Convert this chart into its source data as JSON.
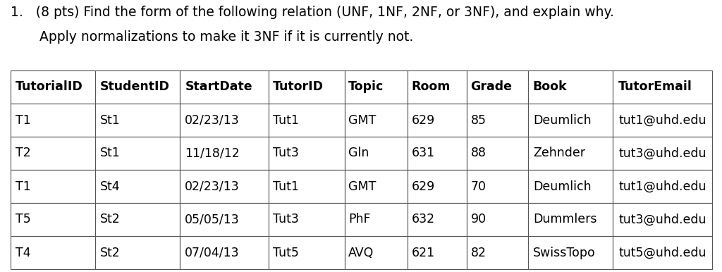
{
  "title_line1": "1.   (8 pts) Find the form of the following relation (UNF, 1NF, 2NF, or 3NF), and explain why.",
  "title_line2": "      Apply normalizations to make it 3NF if it is currently not.",
  "headers": [
    "TutorialID",
    "StudentID",
    "StartDate",
    "TutorID",
    "Topic",
    "Room",
    "Grade",
    "Book",
    "TutorEmail"
  ],
  "rows": [
    [
      "T1",
      "St1",
      "02/23/13",
      "Tut1",
      "GMT",
      "629",
      "85",
      "Deumlich",
      "tut1@uhd.edu"
    ],
    [
      "T2",
      "St1",
      "11/18/12",
      "Tut3",
      "Gln",
      "631",
      "88",
      "Zehnder",
      "tut3@uhd.edu"
    ],
    [
      "T1",
      "St4",
      "02/23/13",
      "Tut1",
      "GMT",
      "629",
      "70",
      "Deumlich",
      "tut1@uhd.edu"
    ],
    [
      "T5",
      "St2",
      "05/05/13",
      "Tut3",
      "PhF",
      "632",
      "90",
      "Dummlers",
      "tut3@uhd.edu"
    ],
    [
      "T4",
      "St2",
      "07/04/13",
      "Tut5",
      "AVQ",
      "621",
      "82",
      "SwissTopo",
      "tut5@uhd.edu"
    ]
  ],
  "background_color": "#ffffff",
  "title_fontsize": 13.5,
  "table_fontsize": 12.5,
  "col_widths": [
    1.0,
    1.0,
    1.05,
    0.9,
    0.75,
    0.7,
    0.72,
    1.0,
    1.18
  ]
}
